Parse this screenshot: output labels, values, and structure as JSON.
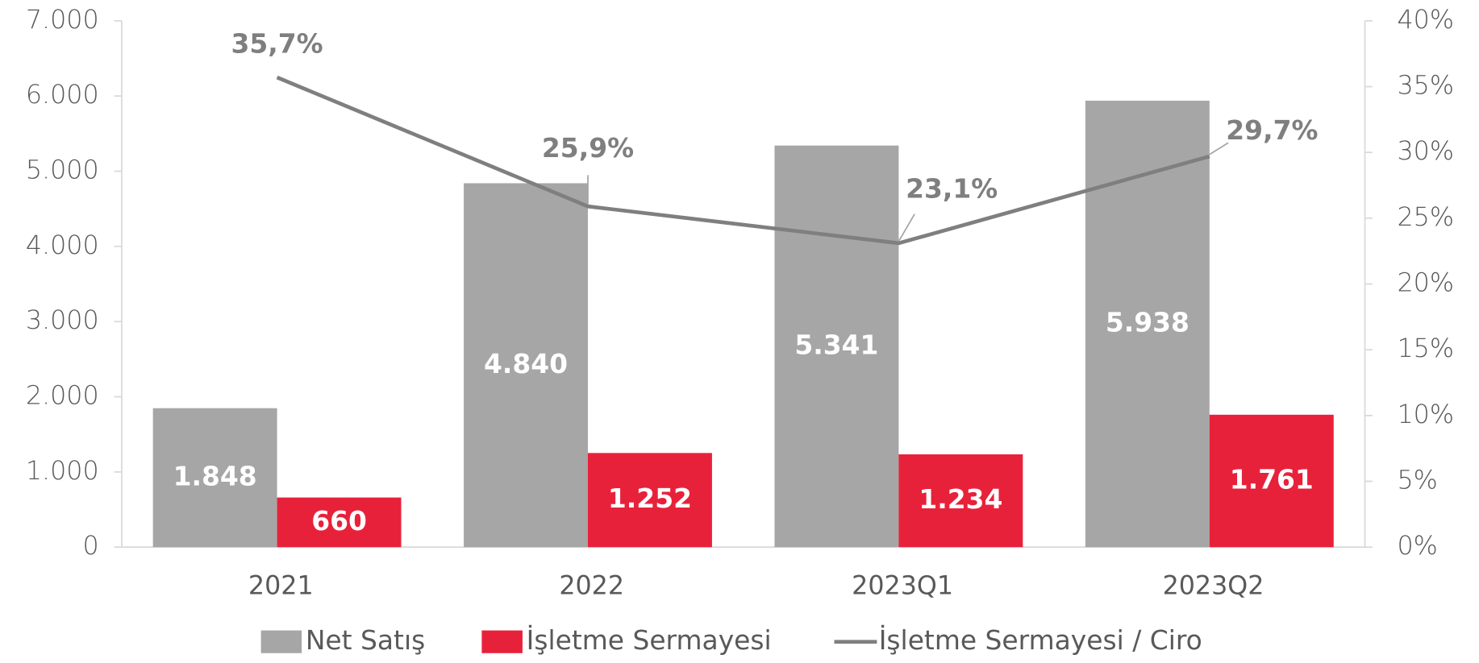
{
  "chart_data": {
    "type": "bar",
    "categories": [
      "2021",
      "2022",
      "2023Q1",
      "2023Q2"
    ],
    "series": [
      {
        "name": "Net Satış",
        "type": "bar",
        "color": "#a6a6a6",
        "values": [
          1848,
          4840,
          5341,
          5938
        ],
        "value_labels": [
          "1.848",
          "4.840",
          "5.341",
          "5.938"
        ]
      },
      {
        "name": "İşletme Sermayesi",
        "type": "bar",
        "color": "#e8213a",
        "values": [
          660,
          1252,
          1234,
          1761
        ],
        "value_labels": [
          "660",
          "1.252",
          "1.234",
          "1.761"
        ]
      },
      {
        "name": "İşletme Sermayesi / Ciro",
        "type": "line",
        "axis": "y2",
        "color": "#7f7f7f",
        "values": [
          35.7,
          25.9,
          23.1,
          29.7
        ],
        "value_labels": [
          "35,7%",
          "25,9%",
          "23,1%",
          "29,7%"
        ]
      }
    ],
    "ylim": [
      0,
      7000
    ],
    "yticks": [
      {
        "value": 0,
        "label": "0"
      },
      {
        "value": 1000,
        "label": "1.000"
      },
      {
        "value": 2000,
        "label": "2.000"
      },
      {
        "value": 3000,
        "label": "3.000"
      },
      {
        "value": 4000,
        "label": "4.000"
      },
      {
        "value": 5000,
        "label": "5.000"
      },
      {
        "value": 6000,
        "label": "6.000"
      },
      {
        "value": 7000,
        "label": "7.000"
      }
    ],
    "y2lim": [
      0,
      40
    ],
    "y2ticks": [
      {
        "value": 0,
        "label": "0%"
      },
      {
        "value": 5,
        "label": "5%"
      },
      {
        "value": 10,
        "label": "10%"
      },
      {
        "value": 15,
        "label": "15%"
      },
      {
        "value": 20,
        "label": "20%"
      },
      {
        "value": 25,
        "label": "25%"
      },
      {
        "value": 30,
        "label": "30%"
      },
      {
        "value": 35,
        "label": "35%"
      },
      {
        "value": 40,
        "label": "40%"
      }
    ],
    "legend": "bottom"
  }
}
